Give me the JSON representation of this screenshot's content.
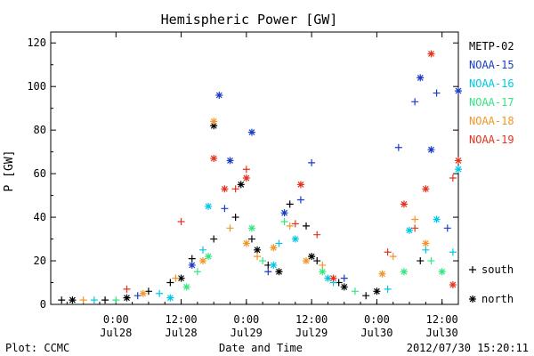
{
  "chart_data": {
    "type": "scatter",
    "title": "Hemispheric Power [GW]",
    "xlabel": "Date and Time",
    "ylabel": "P [GW]",
    "xlim": [
      "2012-07-27T12:00",
      "2012-07-30T15:00"
    ],
    "ylim": [
      0,
      125
    ],
    "yticks": [
      0,
      20,
      40,
      60,
      80,
      100,
      120
    ],
    "xticks": [
      {
        "t": "2012-07-28T00:00",
        "line1": "0:00",
        "line2": "Jul28"
      },
      {
        "t": "2012-07-28T12:00",
        "line1": "12:00",
        "line2": "Jul28"
      },
      {
        "t": "2012-07-29T00:00",
        "line1": "0:00",
        "line2": "Jul29"
      },
      {
        "t": "2012-07-29T12:00",
        "line1": "12:00",
        "line2": "Jul29"
      },
      {
        "t": "2012-07-30T00:00",
        "line1": "0:00",
        "line2": "Jul30"
      },
      {
        "t": "2012-07-30T12:00",
        "line1": "12:00",
        "line2": "Jul30"
      }
    ],
    "legend_position": "right",
    "marker_legend": [
      {
        "symbol": "+",
        "label": "south"
      },
      {
        "symbol": "*",
        "label": "north"
      }
    ],
    "series": [
      {
        "name": "METP-02",
        "color": "#000000",
        "south": [
          [
            "2012-07-27T14:00",
            2
          ],
          [
            "2012-07-27T22:00",
            2
          ],
          [
            "2012-07-28T06:00",
            6
          ],
          [
            "2012-07-28T10:00",
            10
          ],
          [
            "2012-07-28T14:00",
            21
          ],
          [
            "2012-07-28T18:00",
            30
          ],
          [
            "2012-07-28T22:00",
            40
          ],
          [
            "2012-07-29T01:00",
            30
          ],
          [
            "2012-07-29T04:00",
            18
          ],
          [
            "2012-07-29T08:00",
            46
          ],
          [
            "2012-07-29T11:00",
            36
          ],
          [
            "2012-07-29T13:00",
            20
          ],
          [
            "2012-07-29T17:00",
            10
          ],
          [
            "2012-07-29T22:00",
            4
          ],
          [
            "2012-07-30T08:00",
            20
          ]
        ],
        "north": [
          [
            "2012-07-27T16:00",
            2
          ],
          [
            "2012-07-28T02:00",
            3
          ],
          [
            "2012-07-28T12:00",
            12
          ],
          [
            "2012-07-28T18:00",
            82
          ],
          [
            "2012-07-28T23:00",
            55
          ],
          [
            "2012-07-29T02:00",
            25
          ],
          [
            "2012-07-29T06:00",
            15
          ],
          [
            "2012-07-29T12:00",
            22
          ],
          [
            "2012-07-29T18:00",
            8
          ],
          [
            "2012-07-30T00:00",
            6
          ]
        ]
      },
      {
        "name": "NOAA-15",
        "color": "#1a3cc8",
        "south": [
          [
            "2012-07-28T04:00",
            4
          ],
          [
            "2012-07-28T20:00",
            44
          ],
          [
            "2012-07-29T04:00",
            15
          ],
          [
            "2012-07-29T10:00",
            48
          ],
          [
            "2012-07-29T12:00",
            65
          ],
          [
            "2012-07-29T18:00",
            12
          ],
          [
            "2012-07-30T04:00",
            72
          ],
          [
            "2012-07-30T07:00",
            93
          ],
          [
            "2012-07-30T11:00",
            97
          ],
          [
            "2012-07-30T13:00",
            35
          ]
        ],
        "north": [
          [
            "2012-07-28T14:00",
            18
          ],
          [
            "2012-07-28T19:00",
            96
          ],
          [
            "2012-07-28T21:00",
            66
          ],
          [
            "2012-07-29T01:00",
            79
          ],
          [
            "2012-07-29T07:00",
            42
          ],
          [
            "2012-07-30T08:00",
            104
          ],
          [
            "2012-07-30T10:00",
            71
          ],
          [
            "2012-07-30T15:00",
            98
          ]
        ]
      },
      {
        "name": "NOAA-16",
        "color": "#00c8e6",
        "south": [
          [
            "2012-07-27T20:00",
            2
          ],
          [
            "2012-07-28T08:00",
            5
          ],
          [
            "2012-07-28T16:00",
            25
          ],
          [
            "2012-07-29T06:00",
            28
          ],
          [
            "2012-07-29T16:00",
            10
          ],
          [
            "2012-07-30T02:00",
            7
          ],
          [
            "2012-07-30T09:00",
            25
          ],
          [
            "2012-07-30T14:00",
            24
          ]
        ],
        "north": [
          [
            "2012-07-28T10:00",
            3
          ],
          [
            "2012-07-28T17:00",
            45
          ],
          [
            "2012-07-29T05:00",
            18
          ],
          [
            "2012-07-29T09:00",
            30
          ],
          [
            "2012-07-29T15:00",
            12
          ],
          [
            "2012-07-30T06:00",
            34
          ],
          [
            "2012-07-30T11:00",
            39
          ],
          [
            "2012-07-30T15:00",
            62
          ]
        ]
      },
      {
        "name": "NOAA-17",
        "color": "#33e680",
        "south": [
          [
            "2012-07-28T00:00",
            2
          ],
          [
            "2012-07-28T15:00",
            15
          ],
          [
            "2012-07-29T03:00",
            20
          ],
          [
            "2012-07-29T07:00",
            38
          ],
          [
            "2012-07-29T20:00",
            6
          ],
          [
            "2012-07-30T10:00",
            20
          ]
        ],
        "north": [
          [
            "2012-07-28T13:00",
            8
          ],
          [
            "2012-07-28T17:00",
            22
          ],
          [
            "2012-07-29T01:00",
            35
          ],
          [
            "2012-07-29T14:00",
            15
          ],
          [
            "2012-07-30T05:00",
            15
          ],
          [
            "2012-07-30T12:00",
            15
          ]
        ]
      },
      {
        "name": "NOAA-18",
        "color": "#f09628",
        "south": [
          [
            "2012-07-27T18:00",
            2
          ],
          [
            "2012-07-28T11:00",
            12
          ],
          [
            "2012-07-28T21:00",
            35
          ],
          [
            "2012-07-29T02:00",
            22
          ],
          [
            "2012-07-29T08:00",
            36
          ],
          [
            "2012-07-29T14:00",
            18
          ],
          [
            "2012-07-30T03:00",
            22
          ],
          [
            "2012-07-30T07:00",
            39
          ]
        ],
        "north": [
          [
            "2012-07-28T05:00",
            5
          ],
          [
            "2012-07-28T16:00",
            20
          ],
          [
            "2012-07-28T18:00",
            84
          ],
          [
            "2012-07-29T00:00",
            28
          ],
          [
            "2012-07-29T05:00",
            26
          ],
          [
            "2012-07-29T11:00",
            20
          ],
          [
            "2012-07-30T01:00",
            14
          ],
          [
            "2012-07-30T09:00",
            28
          ]
        ]
      },
      {
        "name": "NOAA-19",
        "color": "#e6321e",
        "south": [
          [
            "2012-07-28T02:00",
            7
          ],
          [
            "2012-07-28T12:00",
            38
          ],
          [
            "2012-07-28T22:00",
            53
          ],
          [
            "2012-07-29T00:00",
            62
          ],
          [
            "2012-07-29T09:00",
            37
          ],
          [
            "2012-07-29T13:00",
            32
          ],
          [
            "2012-07-30T02:00",
            24
          ],
          [
            "2012-07-30T07:00",
            35
          ],
          [
            "2012-07-30T14:00",
            58
          ]
        ],
        "north": [
          [
            "2012-07-28T18:00",
            67
          ],
          [
            "2012-07-28T20:00",
            53
          ],
          [
            "2012-07-29T00:00",
            58
          ],
          [
            "2012-07-29T10:00",
            55
          ],
          [
            "2012-07-29T16:00",
            12
          ],
          [
            "2012-07-30T05:00",
            46
          ],
          [
            "2012-07-30T10:00",
            115
          ],
          [
            "2012-07-30T09:00",
            53
          ],
          [
            "2012-07-30T14:00",
            9
          ],
          [
            "2012-07-30T15:00",
            66
          ]
        ]
      }
    ]
  },
  "footer": {
    "left": "Plot: CCMC",
    "right": "2012/07/30 15:20:11"
  }
}
